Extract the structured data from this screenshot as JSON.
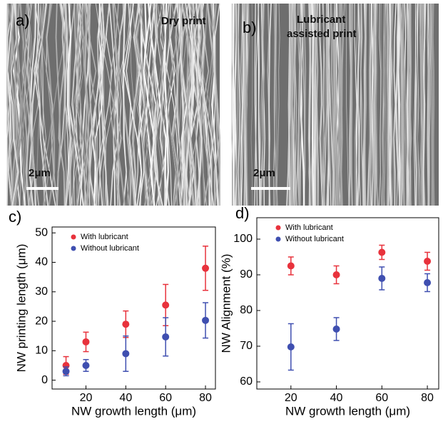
{
  "images": [
    {
      "label": "a)",
      "caption": "Dry print",
      "scale_bar": "2μm"
    },
    {
      "label": "b)",
      "caption": "Lubricant assisted print",
      "scale_bar": "2μm"
    }
  ],
  "chart_data": [
    {
      "type": "scatter",
      "panel_label": "c)",
      "xlabel": "NW growth length (μm)",
      "ylabel": "NW printing length (μm)",
      "x": [
        10,
        20,
        40,
        60,
        80
      ],
      "xlim": [
        3,
        85
      ],
      "xticks": [
        20,
        40,
        60,
        80
      ],
      "ylim": [
        -3,
        52
      ],
      "yticks": [
        0,
        10,
        20,
        30,
        40,
        50
      ],
      "legend": "upper left",
      "series": [
        {
          "name": "With lubricant",
          "color": "#e8323c",
          "values": [
            5,
            13,
            19,
            25.5,
            38
          ],
          "errors": [
            3,
            3.3,
            4.5,
            7,
            7.5
          ]
        },
        {
          "name": "Without lubricant",
          "color": "#3f4fb0",
          "values": [
            3,
            5,
            9,
            14.7,
            20.3
          ],
          "errors": [
            1.5,
            2,
            6,
            6.5,
            6
          ]
        }
      ]
    },
    {
      "type": "scatter",
      "panel_label": "d)",
      "xlabel": "NW growth length (μm)",
      "ylabel": "NW Alignment (%)",
      "x": [
        20,
        40,
        60,
        80
      ],
      "xlim": [
        5,
        85
      ],
      "xticks": [
        20,
        40,
        60,
        80
      ],
      "ylim": [
        58,
        106
      ],
      "yticks": [
        60,
        70,
        80,
        90,
        100
      ],
      "legend": "upper left",
      "series": [
        {
          "name": "With lubricant",
          "color": "#e8323c",
          "values": [
            92.5,
            90,
            96.3,
            93.8
          ],
          "errors": [
            2.5,
            2.5,
            2,
            2.5
          ]
        },
        {
          "name": "Without lubricant",
          "color": "#3f4fb0",
          "values": [
            69.8,
            74.8,
            89,
            87.8
          ],
          "errors": [
            6.5,
            3.2,
            3.2,
            2.5
          ]
        }
      ]
    }
  ]
}
